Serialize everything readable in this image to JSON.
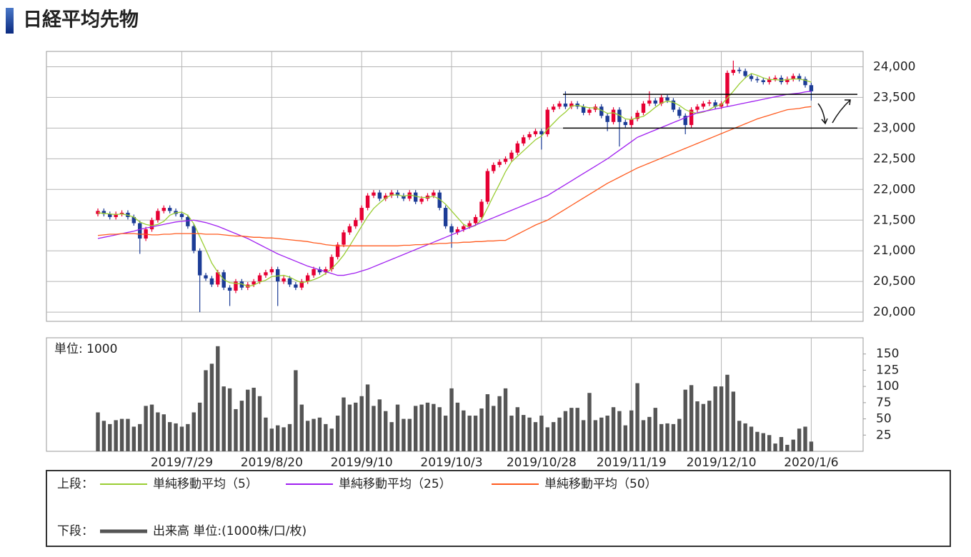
{
  "title": "日経平均先物",
  "chart_data": [
    {
      "type": "candlestick",
      "up_color": "#e60033",
      "down_color": "#1c3c96",
      "open": [
        21600,
        21650,
        21600,
        21550,
        21600,
        21620,
        21550,
        21450,
        21200,
        21350,
        21500,
        21650,
        21700,
        21650,
        21600,
        21550,
        21400,
        21000,
        20600,
        20550,
        20450,
        20650,
        20400,
        20350,
        20500,
        20400,
        20450,
        20500,
        20600,
        20650,
        20700,
        20500,
        20550,
        20450,
        20400,
        20500,
        20600,
        20700,
        20650,
        20700,
        20900,
        21100,
        21300,
        21400,
        21500,
        21700,
        21900,
        21950,
        21850,
        21900,
        21950,
        21900,
        21850,
        21950,
        21800,
        21850,
        21900,
        21950,
        21700,
        21400,
        21300,
        21350,
        21400,
        21450,
        21550,
        21800,
        22300,
        22400,
        22450,
        22500,
        22600,
        22750,
        22850,
        22900,
        22950,
        22900,
        23300,
        23350,
        23400,
        23350,
        23400,
        23350,
        23250,
        23300,
        23350,
        23200,
        23100,
        23300,
        23100,
        23050,
        23150,
        23250,
        23400,
        23450,
        23400,
        23500,
        23450,
        23300,
        23200,
        23050,
        23300,
        23350,
        23400,
        23420,
        23350,
        23400,
        23900,
        23950,
        23930,
        23850,
        23800,
        23780,
        23750,
        23800,
        23820,
        23750,
        23800,
        23850,
        23800,
        23700
      ],
      "high": [
        21690,
        21690,
        21640,
        21640,
        21660,
        21660,
        21590,
        21490,
        21390,
        21540,
        21690,
        21740,
        21740,
        21690,
        21640,
        21590,
        21440,
        21040,
        20640,
        20590,
        20690,
        20690,
        20440,
        20540,
        20540,
        20490,
        20540,
        20640,
        20690,
        20740,
        20740,
        20590,
        20590,
        20490,
        20540,
        20640,
        20740,
        20740,
        20740,
        20940,
        21140,
        21340,
        21440,
        21540,
        21740,
        21940,
        21990,
        21990,
        21940,
        21990,
        21990,
        21940,
        21990,
        21990,
        21890,
        21940,
        21990,
        21990,
        21740,
        21440,
        21390,
        21440,
        21490,
        21590,
        21840,
        22340,
        22440,
        22490,
        22540,
        22640,
        22790,
        22890,
        22940,
        22990,
        22990,
        23340,
        23390,
        23440,
        23600,
        23440,
        23440,
        23390,
        23340,
        23390,
        23390,
        23240,
        23340,
        23340,
        23140,
        23190,
        23290,
        23440,
        23600,
        23490,
        23540,
        23540,
        23490,
        23340,
        23240,
        23340,
        23390,
        23440,
        23460,
        23460,
        23440,
        23940,
        24100,
        23990,
        23970,
        23890,
        23840,
        23820,
        23840,
        23860,
        23860,
        23840,
        23890,
        23890,
        23840,
        23740
      ],
      "low": [
        21560,
        21560,
        21510,
        21510,
        21560,
        21510,
        21410,
        20950,
        21160,
        21310,
        21460,
        21610,
        21610,
        21560,
        21510,
        21360,
        20960,
        20000,
        20510,
        20410,
        20410,
        20360,
        20100,
        20310,
        20360,
        20360,
        20410,
        20460,
        20560,
        20610,
        20100,
        20460,
        20410,
        20360,
        20360,
        20460,
        20560,
        20610,
        20610,
        20660,
        20860,
        21060,
        21260,
        21360,
        21460,
        21660,
        21860,
        21810,
        21810,
        21860,
        21860,
        21810,
        21810,
        21760,
        21760,
        21810,
        21860,
        21660,
        21360,
        21050,
        21260,
        21310,
        21360,
        21410,
        21510,
        21760,
        22260,
        22360,
        22410,
        22460,
        22560,
        22710,
        22810,
        22860,
        22650,
        22860,
        23260,
        23310,
        23310,
        23310,
        23310,
        23210,
        23210,
        23260,
        23160,
        22950,
        23060,
        22700,
        23010,
        23010,
        23110,
        23210,
        23360,
        23360,
        23360,
        23410,
        23260,
        23160,
        22900,
        23010,
        23260,
        23310,
        23360,
        23310,
        23310,
        23360,
        23860,
        23890,
        23810,
        23760,
        23740,
        23710,
        23710,
        23760,
        23710,
        23710,
        23760,
        23760,
        23660,
        23450
      ],
      "close": [
        21650,
        21600,
        21550,
        21600,
        21620,
        21550,
        21450,
        21200,
        21350,
        21500,
        21650,
        21700,
        21650,
        21600,
        21550,
        21400,
        21000,
        20600,
        20550,
        20450,
        20650,
        20400,
        20350,
        20500,
        20400,
        20450,
        20500,
        20600,
        20650,
        20700,
        20500,
        20550,
        20450,
        20400,
        20500,
        20600,
        20700,
        20650,
        20700,
        20900,
        21100,
        21300,
        21400,
        21500,
        21700,
        21900,
        21950,
        21850,
        21900,
        21950,
        21900,
        21850,
        21950,
        21800,
        21850,
        21900,
        21950,
        21700,
        21400,
        21300,
        21350,
        21400,
        21450,
        21550,
        21800,
        22300,
        22400,
        22450,
        22500,
        22600,
        22750,
        22850,
        22900,
        22950,
        22900,
        23300,
        23350,
        23400,
        23350,
        23400,
        23350,
        23250,
        23300,
        23350,
        23200,
        23100,
        23300,
        23100,
        23050,
        23150,
        23250,
        23400,
        23450,
        23400,
        23500,
        23450,
        23300,
        23200,
        23050,
        23300,
        23350,
        23400,
        23420,
        23350,
        23400,
        23900,
        23950,
        23930,
        23850,
        23800,
        23780,
        23750,
        23800,
        23820,
        23750,
        23800,
        23850,
        23800,
        23700,
        23600
      ],
      "series": [
        {
          "name": "単純移動平均（5）",
          "color": "#9acd32",
          "values": [
            21620,
            21610,
            21600,
            21590,
            21600,
            21580,
            21550,
            21470,
            21430,
            21410,
            21430,
            21480,
            21580,
            21620,
            21630,
            21580,
            21440,
            21230,
            21020,
            20800,
            20650,
            20530,
            20480,
            20470,
            20460,
            20420,
            20440,
            20490,
            20520,
            20580,
            20590,
            20600,
            20570,
            20520,
            20480,
            20500,
            20530,
            20570,
            20630,
            20710,
            20810,
            20930,
            21080,
            21240,
            21400,
            21560,
            21690,
            21780,
            21860,
            21910,
            21910,
            21890,
            21910,
            21890,
            21870,
            21870,
            21890,
            21840,
            21760,
            21650,
            21540,
            21430,
            21380,
            21410,
            21510,
            21700,
            21900,
            22090,
            22290,
            22450,
            22540,
            22630,
            22720,
            22810,
            22870,
            22980,
            23080,
            23180,
            23260,
            23360,
            23370,
            23350,
            23330,
            23330,
            23290,
            23240,
            23250,
            23210,
            23150,
            23140,
            23170,
            23190,
            23260,
            23340,
            23410,
            23440,
            23420,
            23370,
            23300,
            23260,
            23240,
            23260,
            23300,
            23360,
            23380,
            23490,
            23600,
            23720,
            23820,
            23890,
            23860,
            23820,
            23790,
            23790,
            23780,
            23790,
            23800,
            23800,
            23780,
            23750
          ]
        },
        {
          "name": "単純移動平均（25）",
          "color": "#a020f0",
          "values": [
            21200,
            21220,
            21240,
            21260,
            21280,
            21300,
            21320,
            21350,
            21370,
            21390,
            21410,
            21430,
            21450,
            21470,
            21480,
            21490,
            21500,
            21480,
            21460,
            21430,
            21400,
            21360,
            21320,
            21280,
            21240,
            21200,
            21150,
            21100,
            21050,
            21000,
            20950,
            20910,
            20870,
            20830,
            20790,
            20750,
            20720,
            20690,
            20660,
            20630,
            20600,
            20600,
            20620,
            20640,
            20670,
            20700,
            20740,
            20780,
            20820,
            20860,
            20900,
            20940,
            20980,
            21020,
            21060,
            21100,
            21140,
            21180,
            21220,
            21260,
            21300,
            21340,
            21380,
            21420,
            21460,
            21500,
            21540,
            21580,
            21620,
            21660,
            21700,
            21740,
            21780,
            21820,
            21860,
            21900,
            21960,
            22020,
            22080,
            22140,
            22200,
            22260,
            22320,
            22380,
            22440,
            22500,
            22570,
            22640,
            22710,
            22780,
            22850,
            22890,
            22930,
            22970,
            23010,
            23050,
            23090,
            23130,
            23170,
            23210,
            23250,
            23270,
            23290,
            23310,
            23330,
            23350,
            23370,
            23390,
            23410,
            23430,
            23450,
            23470,
            23490,
            23510,
            23530,
            23550,
            23560,
            23570,
            23590,
            23600
          ]
        },
        {
          "name": "単純移動平均（50）",
          "color": "#ff5a1e",
          "values": [
            21250,
            21260,
            21270,
            21270,
            21280,
            21280,
            21280,
            21270,
            21270,
            21260,
            21260,
            21270,
            21270,
            21280,
            21280,
            21280,
            21280,
            21280,
            21270,
            21270,
            21270,
            21260,
            21250,
            21240,
            21240,
            21230,
            21220,
            21220,
            21210,
            21210,
            21200,
            21190,
            21180,
            21170,
            21160,
            21150,
            21130,
            21120,
            21100,
            21090,
            21080,
            21080,
            21080,
            21080,
            21080,
            21080,
            21080,
            21080,
            21080,
            21080,
            21080,
            21090,
            21090,
            21100,
            21100,
            21110,
            21110,
            21120,
            21120,
            21130,
            21130,
            21140,
            21140,
            21150,
            21150,
            21160,
            21160,
            21170,
            21170,
            21220,
            21270,
            21320,
            21370,
            21420,
            21460,
            21500,
            21560,
            21620,
            21680,
            21740,
            21800,
            21860,
            21920,
            21980,
            22040,
            22100,
            22150,
            22200,
            22250,
            22300,
            22350,
            22390,
            22430,
            22470,
            22510,
            22550,
            22590,
            22630,
            22670,
            22710,
            22750,
            22790,
            22830,
            22870,
            22910,
            22950,
            22990,
            23030,
            23070,
            23110,
            23150,
            23180,
            23210,
            23240,
            23270,
            23300,
            23310,
            23320,
            23340,
            23350
          ]
        }
      ],
      "legend_prefix": "上段：",
      "guides": [
        23550,
        23000
      ],
      "ylim": [
        19850,
        24250
      ],
      "yticks": [
        {
          "value": 20000,
          "label": "20,000"
        },
        {
          "value": 20500,
          "label": "20,500"
        },
        {
          "value": 21000,
          "label": "21,000"
        },
        {
          "value": 21500,
          "label": "21,500"
        },
        {
          "value": 22000,
          "label": "22,000"
        },
        {
          "value": 22500,
          "label": "22,500"
        },
        {
          "value": 23000,
          "label": "23,000"
        },
        {
          "value": 23500,
          "label": "23,500"
        },
        {
          "value": 24000,
          "label": "24,000"
        }
      ],
      "grid": true
    },
    {
      "type": "bar",
      "unit_label": "単位: 1000",
      "categories": [
        null,
        null,
        null,
        null,
        null,
        null,
        null,
        null,
        null,
        null,
        null,
        null,
        null,
        null,
        "2019/7/29",
        null,
        null,
        null,
        null,
        null,
        null,
        null,
        null,
        null,
        null,
        null,
        null,
        null,
        null,
        "2019/8/20",
        null,
        null,
        null,
        null,
        null,
        null,
        null,
        null,
        null,
        null,
        null,
        null,
        null,
        null,
        "2019/9/10",
        null,
        null,
        null,
        null,
        null,
        null,
        null,
        null,
        null,
        null,
        null,
        null,
        null,
        null,
        "2019/10/3",
        null,
        null,
        null,
        null,
        null,
        null,
        null,
        null,
        null,
        null,
        null,
        null,
        null,
        null,
        "2019/10/28",
        null,
        null,
        null,
        null,
        null,
        null,
        null,
        null,
        null,
        null,
        null,
        null,
        null,
        null,
        "2019/11/19",
        null,
        null,
        null,
        null,
        null,
        null,
        null,
        null,
        null,
        null,
        null,
        null,
        null,
        null,
        "2019/12/10",
        null,
        null,
        null,
        null,
        null,
        null,
        null,
        null,
        null,
        null,
        null,
        null,
        null,
        null,
        "2020/1/6"
      ],
      "series": [
        {
          "name": "出来高 単位:(1000株/口/枚)",
          "color": "#555555",
          "values": [
            60,
            47,
            42,
            48,
            50,
            50,
            38,
            42,
            70,
            72,
            60,
            57,
            45,
            43,
            38,
            42,
            60,
            75,
            125,
            135,
            162,
            100,
            97,
            65,
            78,
            95,
            98,
            85,
            52,
            35,
            40,
            37,
            42,
            125,
            72,
            47,
            50,
            52,
            42,
            35,
            55,
            83,
            72,
            75,
            85,
            103,
            70,
            80,
            62,
            45,
            72,
            50,
            50,
            70,
            72,
            75,
            73,
            68,
            55,
            97,
            75,
            63,
            55,
            55,
            66,
            88,
            70,
            85,
            97,
            55,
            68,
            56,
            52,
            45,
            55,
            37,
            45,
            52,
            62,
            67,
            67,
            48,
            90,
            48,
            52,
            55,
            68,
            62,
            40,
            63,
            105,
            48,
            53,
            67,
            42,
            43,
            42,
            50,
            95,
            102,
            77,
            73,
            78,
            100,
            100,
            118,
            92,
            47,
            43,
            38,
            30,
            28,
            25,
            12,
            22,
            10,
            18,
            35,
            38,
            15
          ]
        }
      ],
      "legend_prefix": "下段：",
      "ylim": [
        0,
        175
      ],
      "yticks": [
        25,
        50,
        75,
        100,
        125,
        150
      ]
    }
  ]
}
